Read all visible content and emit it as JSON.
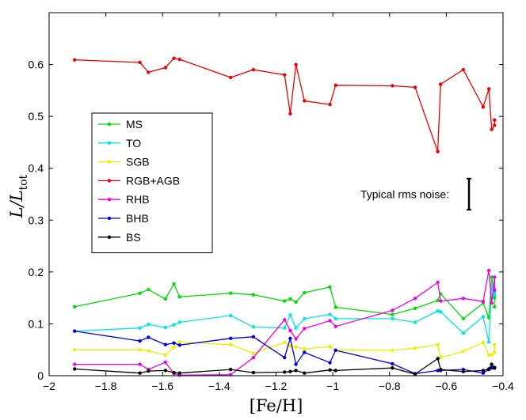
{
  "chart_data": {
    "type": "line",
    "title": "",
    "xlabel": "[Fe/H]",
    "ylabel": {
      "main": "L/L",
      "sub": "tot"
    },
    "xlim": [
      -2,
      -0.4
    ],
    "ylim": [
      0,
      0.7
    ],
    "xticks": [
      -2,
      -1.8,
      -1.6,
      -1.4,
      -1.2,
      -1,
      -0.8,
      -0.6,
      -0.4
    ],
    "xtick_labels": [
      "−2",
      "−1.8",
      "−1.6",
      "−1.4",
      "−1.2",
      "−1",
      "−0.8",
      "−0.6",
      "−0.4"
    ],
    "yticks": [
      0,
      0.1,
      0.2,
      0.3,
      0.4,
      0.5,
      0.6
    ],
    "ytick_labels": [
      "0",
      "0.1",
      "0.2",
      "0.3",
      "0.4",
      "0.5",
      "0.6"
    ],
    "grid": false,
    "legend_position": "left",
    "annotation": {
      "text": "Typical rms noise:",
      "errorbar": {
        "x": -0.52,
        "y": 0.35,
        "half_range": 0.03
      }
    },
    "x": [
      -1.91,
      -1.68,
      -1.65,
      -1.59,
      -1.56,
      -1.54,
      -1.36,
      -1.28,
      -1.17,
      -1.15,
      -1.13,
      -1.1,
      -1.01,
      -0.99,
      -0.79,
      -0.71,
      -0.63,
      -0.62,
      -0.54,
      -0.47,
      -0.45,
      -0.44,
      -0.43,
      -0.43
    ],
    "series": [
      {
        "name": "MS",
        "color": "#00dd00",
        "values": [
          0.133,
          0.159,
          0.166,
          0.148,
          0.177,
          0.152,
          0.159,
          0.156,
          0.144,
          0.148,
          0.142,
          0.16,
          0.171,
          0.132,
          0.118,
          0.13,
          0.145,
          0.158,
          0.11,
          0.14,
          0.112,
          0.19,
          0.15,
          0.133
        ]
      },
      {
        "name": "TO",
        "color": "#00e5e5",
        "values": [
          0.086,
          0.092,
          0.099,
          0.093,
          0.098,
          0.103,
          0.116,
          0.094,
          0.092,
          0.117,
          0.092,
          0.11,
          0.118,
          0.11,
          0.11,
          0.103,
          0.125,
          0.123,
          0.082,
          0.114,
          0.065,
          0.17,
          0.16,
          0.155
        ]
      },
      {
        "name": "SGB",
        "color": "#eeee00",
        "values": [
          0.05,
          0.05,
          0.048,
          0.04,
          0.055,
          0.065,
          0.06,
          0.043,
          0.064,
          0.057,
          0.055,
          0.052,
          0.056,
          0.05,
          0.049,
          0.053,
          0.06,
          0.035,
          0.047,
          0.064,
          0.04,
          0.04,
          0.045,
          0.06
        ]
      },
      {
        "name": "RGB+AGB",
        "color": "#ee0000",
        "values": [
          0.609,
          0.604,
          0.585,
          0.594,
          0.612,
          0.61,
          0.575,
          0.59,
          0.58,
          0.505,
          0.6,
          0.53,
          0.523,
          0.56,
          0.559,
          0.556,
          0.432,
          0.562,
          0.59,
          0.518,
          0.553,
          0.475,
          0.483,
          0.493
        ]
      },
      {
        "name": "RHB",
        "color": "#ee00ee",
        "values": [
          0.022,
          0.022,
          0.012,
          0.026,
          0.004,
          0.001,
          0.002,
          0.035,
          0.108,
          0.087,
          0.071,
          0.091,
          0.106,
          0.095,
          0.126,
          0.149,
          0.18,
          0.144,
          0.149,
          0.143,
          0.203,
          0.14,
          0.19,
          0.165
        ]
      },
      {
        "name": "BHB",
        "color": "#0000dd",
        "values": [
          0.086,
          0.067,
          0.074,
          0.06,
          0.063,
          0.059,
          0.072,
          0.075,
          0.035,
          0.072,
          0.022,
          0.045,
          0.025,
          0.049,
          0.023,
          0.004,
          0.01,
          0.01,
          0.012,
          0.005,
          0.012,
          0.015,
          0.015,
          0.016
        ]
      },
      {
        "name": "BS",
        "color": "#000000",
        "values": [
          0.013,
          0.005,
          0.009,
          0.01,
          0.006,
          0.005,
          0.012,
          0.006,
          0.007,
          0.008,
          0.01,
          0.005,
          0.011,
          0.01,
          0.015,
          0.003,
          0.033,
          0.012,
          0.008,
          0.01,
          0.013,
          0.022,
          0.015,
          0.015
        ]
      }
    ]
  }
}
